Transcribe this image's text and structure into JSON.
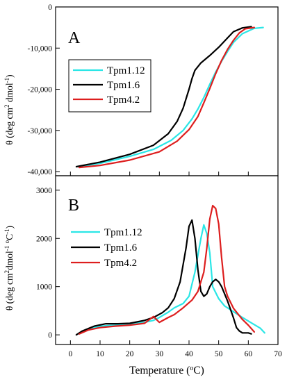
{
  "chart_data": [
    {
      "type": "line",
      "panel_label": "A",
      "ylabel_parts": [
        "θ (deg cm",
        "2",
        " dmol",
        "-1",
        ")"
      ],
      "xlim": [
        -5,
        70
      ],
      "ylim": [
        -41000,
        0
      ],
      "yticks": [
        0,
        -10000,
        -20000,
        -30000,
        -40000
      ],
      "ytick_labels": [
        "0",
        "-10,000",
        "-20,000",
        "-30,000",
        "-40,000"
      ],
      "xticks": [
        0,
        10,
        20,
        30,
        40,
        50,
        60,
        70
      ],
      "legend_position": "upper-left",
      "series": [
        {
          "name": "Tpm1.12",
          "color": "#2ae6e6",
          "x": [
            3,
            10,
            20,
            28,
            34,
            38,
            41,
            43,
            45,
            47,
            49,
            51,
            53,
            55,
            58,
            62,
            65
          ],
          "y": [
            -38800,
            -38000,
            -36300,
            -34600,
            -32400,
            -30000,
            -27200,
            -24800,
            -22000,
            -18800,
            -15800,
            -13200,
            -10800,
            -8600,
            -6500,
            -5200,
            -5000
          ]
        },
        {
          "name": "Tpm1.6",
          "color": "#000000",
          "x": [
            2,
            10,
            20,
            28,
            33,
            36,
            38,
            40,
            41,
            42,
            44,
            47,
            50,
            53,
            55,
            58,
            61
          ],
          "y": [
            -38800,
            -37700,
            -35800,
            -33600,
            -30800,
            -27800,
            -24600,
            -20000,
            -17400,
            -15400,
            -13600,
            -11800,
            -9800,
            -7500,
            -6000,
            -5100,
            -4800
          ]
        },
        {
          "name": "Tpm4.2",
          "color": "#dd1e1e",
          "x": [
            3,
            10,
            20,
            30,
            36,
            40,
            43,
            45,
            47,
            49,
            51,
            53,
            55,
            57,
            59,
            62
          ],
          "y": [
            -39000,
            -38500,
            -37200,
            -35200,
            -32600,
            -29800,
            -26600,
            -23300,
            -19800,
            -16200,
            -13000,
            -10300,
            -8100,
            -6300,
            -5300,
            -5000
          ]
        }
      ]
    },
    {
      "type": "line",
      "panel_label": "B",
      "ylabel_parts": [
        "θ (deg cm",
        "2",
        "dmol",
        "-1",
        " ",
        "o",
        "C",
        "-1",
        ")"
      ],
      "xlabel_parts": [
        "Temperature (",
        "o",
        "C)"
      ],
      "xlim": [
        -5,
        70
      ],
      "ylim": [
        -200,
        3300
      ],
      "yticks": [
        0,
        1000,
        2000,
        3000
      ],
      "ytick_labels": [
        "0",
        "1000",
        "2000",
        "3000"
      ],
      "xticks": [
        0,
        10,
        20,
        30,
        40,
        50,
        60,
        70
      ],
      "xtick_labels": [
        "0",
        "10",
        "20",
        "30",
        "40",
        "50",
        "60",
        "70"
      ],
      "legend_position": "center-left",
      "series": [
        {
          "name": "Tpm1.12",
          "color": "#2ae6e6",
          "x": [
            3,
            6,
            10,
            15,
            20,
            25,
            28,
            30,
            33,
            35,
            38,
            40,
            42,
            44,
            45,
            46,
            47,
            48,
            50,
            52,
            55,
            58,
            61,
            64,
            65.5
          ],
          "y": [
            30,
            120,
            180,
            200,
            230,
            260,
            300,
            360,
            470,
            560,
            650,
            800,
            1300,
            2000,
            2280,
            2100,
            1700,
            1000,
            750,
            600,
            480,
            360,
            250,
            140,
            40
          ]
        },
        {
          "name": "Tpm1.6",
          "color": "#000000",
          "x": [
            2,
            4,
            8,
            12,
            16,
            20,
            25,
            28,
            31,
            33,
            35,
            37,
            39,
            40,
            41,
            42,
            43,
            44,
            45,
            46,
            47,
            48,
            49,
            50,
            51,
            53,
            55,
            56,
            57,
            58,
            60,
            61
          ],
          "y": [
            0,
            80,
            180,
            230,
            230,
            240,
            300,
            360,
            460,
            560,
            750,
            1100,
            1800,
            2250,
            2380,
            2000,
            1350,
            900,
            800,
            850,
            1000,
            1100,
            1150,
            1100,
            1000,
            700,
            350,
            150,
            80,
            40,
            40,
            20
          ]
        },
        {
          "name": "Tpm4.2",
          "color": "#dd1e1e",
          "x": [
            3,
            6,
            10,
            15,
            20,
            25,
            28,
            30,
            33,
            35,
            38,
            41,
            43,
            45,
            46,
            47,
            48,
            49,
            50,
            51,
            52,
            53,
            55,
            58,
            60,
            62
          ],
          "y": [
            20,
            100,
            150,
            180,
            200,
            240,
            380,
            260,
            360,
            420,
            560,
            720,
            900,
            1300,
            1800,
            2400,
            2680,
            2620,
            2300,
            1600,
            1000,
            800,
            550,
            320,
            200,
            60
          ]
        }
      ]
    }
  ]
}
